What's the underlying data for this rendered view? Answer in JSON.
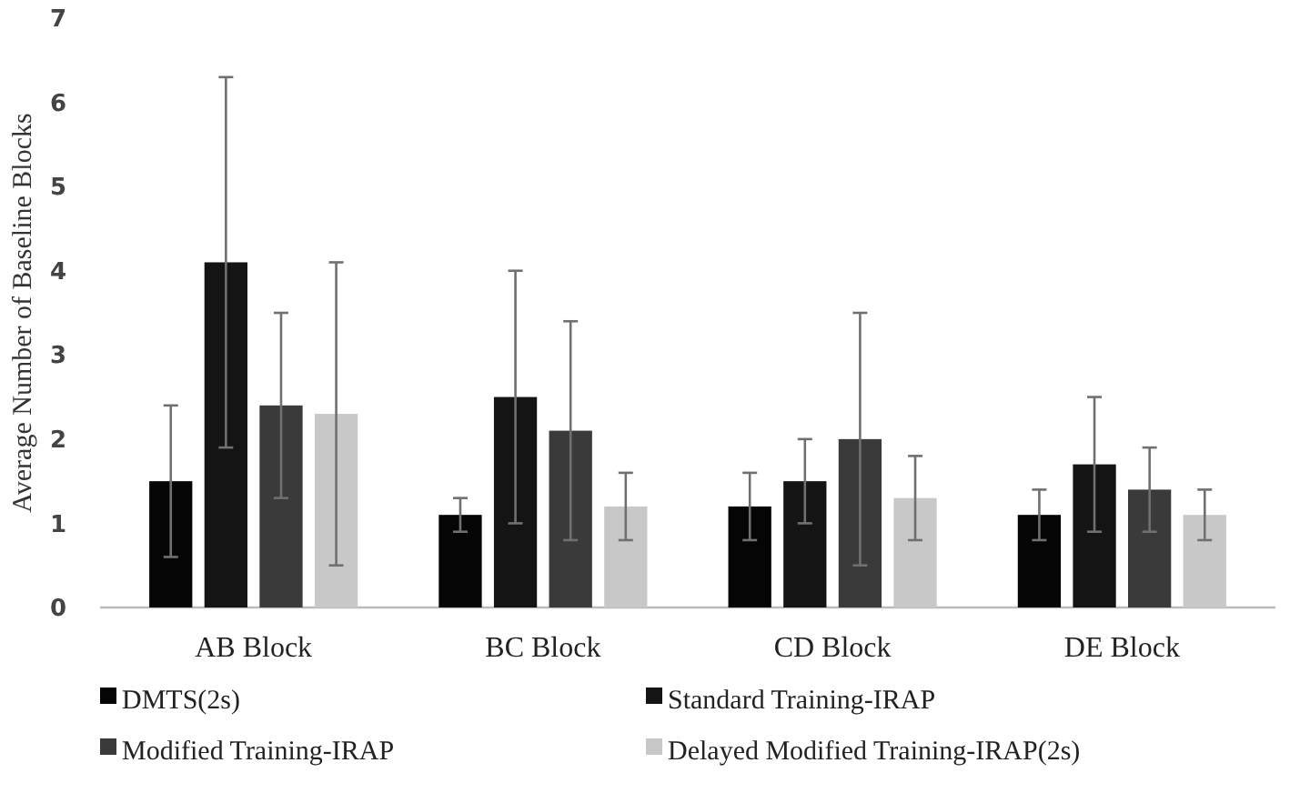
{
  "chart_data": {
    "type": "bar",
    "ylabel": "Average Number of Baseline Blocks",
    "categories": [
      "AB Block",
      "BC Block",
      "CD Block",
      "DE Block"
    ],
    "series": [
      {
        "name": "DMTS(2s)",
        "color": "#050505",
        "values": [
          1.5,
          1.1,
          1.2,
          1.1
        ],
        "errors": [
          [
            0.6,
            2.4
          ],
          [
            0.9,
            1.3
          ],
          [
            0.8,
            1.6
          ],
          [
            0.8,
            1.4
          ]
        ]
      },
      {
        "name": "Standard Training-IRAP",
        "color": "#141414",
        "values": [
          4.1,
          2.5,
          1.5,
          1.7
        ],
        "errors": [
          [
            1.9,
            6.3
          ],
          [
            1.0,
            4.0
          ],
          [
            1.0,
            2.0
          ],
          [
            0.9,
            2.5
          ]
        ]
      },
      {
        "name": "Modified Training-IRAP",
        "color": "#3a3a3a",
        "values": [
          2.4,
          2.1,
          2.0,
          1.4
        ],
        "errors": [
          [
            1.3,
            3.5
          ],
          [
            0.8,
            3.4
          ],
          [
            0.5,
            3.5
          ],
          [
            0.9,
            1.9
          ]
        ]
      },
      {
        "name": "Delayed Modified Training-IRAP(2s)",
        "color": "#c8c8c8",
        "values": [
          2.3,
          1.2,
          1.3,
          1.1
        ],
        "errors": [
          [
            0.5,
            4.1
          ],
          [
            0.8,
            1.6
          ],
          [
            0.8,
            1.8
          ],
          [
            0.8,
            1.4
          ]
        ]
      }
    ],
    "ylim": [
      0,
      7
    ],
    "yticks": [
      0,
      1,
      2,
      3,
      4,
      5,
      6,
      7
    ],
    "grid": false,
    "legend": "bottom"
  }
}
